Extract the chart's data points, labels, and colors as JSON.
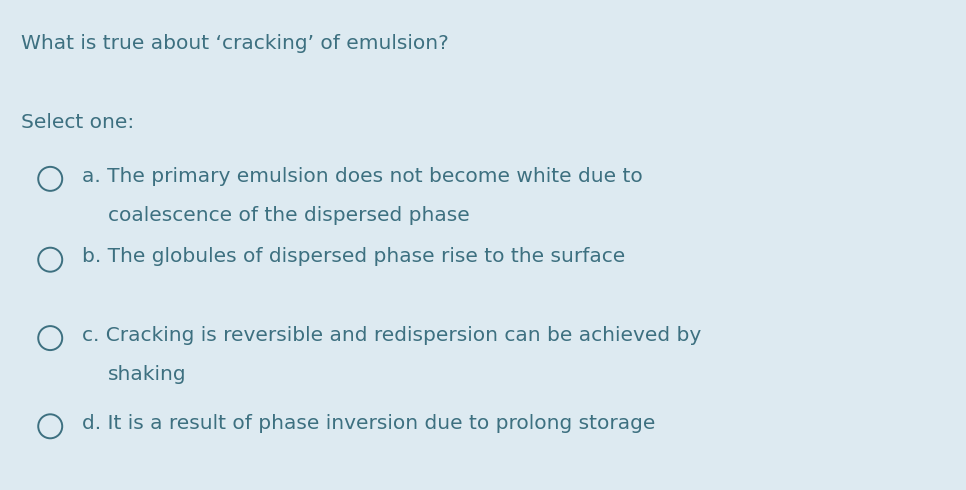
{
  "background_color": "#ddeaf1",
  "text_color": "#3d7080",
  "title": "What is true about ‘cracking’ of emulsion?",
  "select_label": "Select one:",
  "options": [
    {
      "line1": "a. The primary emulsion does not become white due to",
      "line2": "coalescence of the dispersed phase",
      "multiline": true
    },
    {
      "line1": "b. The globules of dispersed phase rise to the surface",
      "line2": null,
      "multiline": false
    },
    {
      "line1": "c. Cracking is reversible and redispersion can be achieved by",
      "line2": "shaking",
      "multiline": true
    },
    {
      "line1": "d. It is a result of phase inversion due to prolong storage",
      "line2": null,
      "multiline": false
    }
  ],
  "title_fontsize": 14.5,
  "select_fontsize": 14.5,
  "option_fontsize": 14.5,
  "font_family": "DejaVu Sans"
}
